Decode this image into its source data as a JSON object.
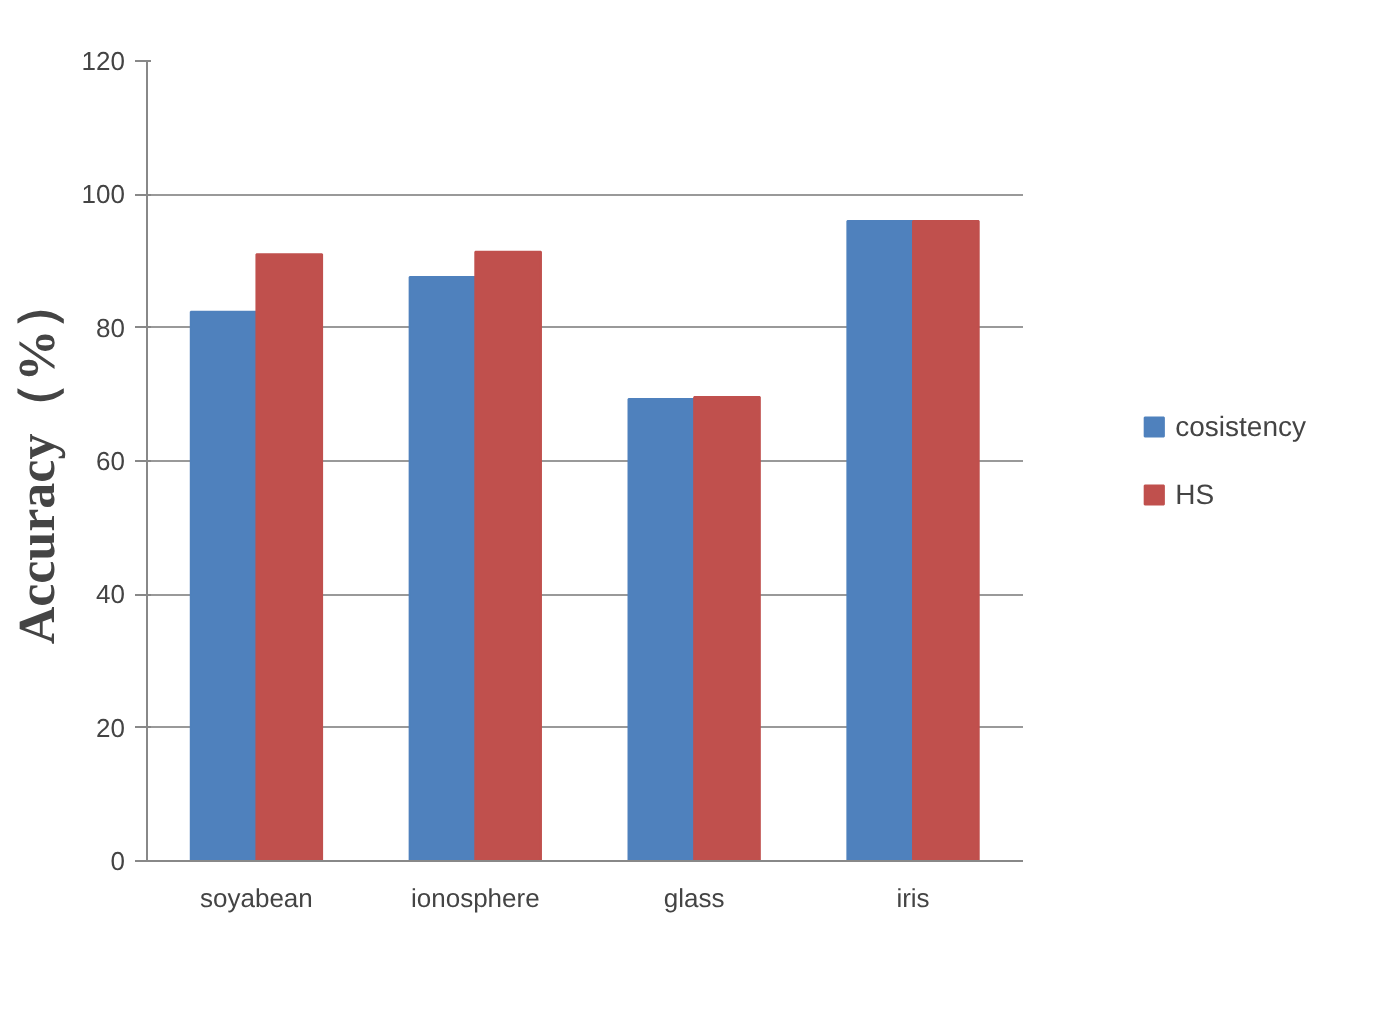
{
  "chart_data": {
    "type": "bar",
    "ylabel": "Accuracy（%）",
    "categories": [
      "soyabean",
      "ionosphere",
      "glass",
      "iris"
    ],
    "series": [
      {
        "name": "cosistency",
        "color": "#4f81bd",
        "values": [
          82.4,
          87.6,
          69.3,
          96.0
        ]
      },
      {
        "name": "HS",
        "color": "#c0504d",
        "values": [
          91.0,
          91.4,
          69.6,
          96.0
        ]
      }
    ],
    "ylim": [
      0,
      120
    ],
    "yticks": [
      0,
      20,
      40,
      60,
      80,
      100,
      120
    ],
    "grid": "y",
    "legend": "right"
  }
}
